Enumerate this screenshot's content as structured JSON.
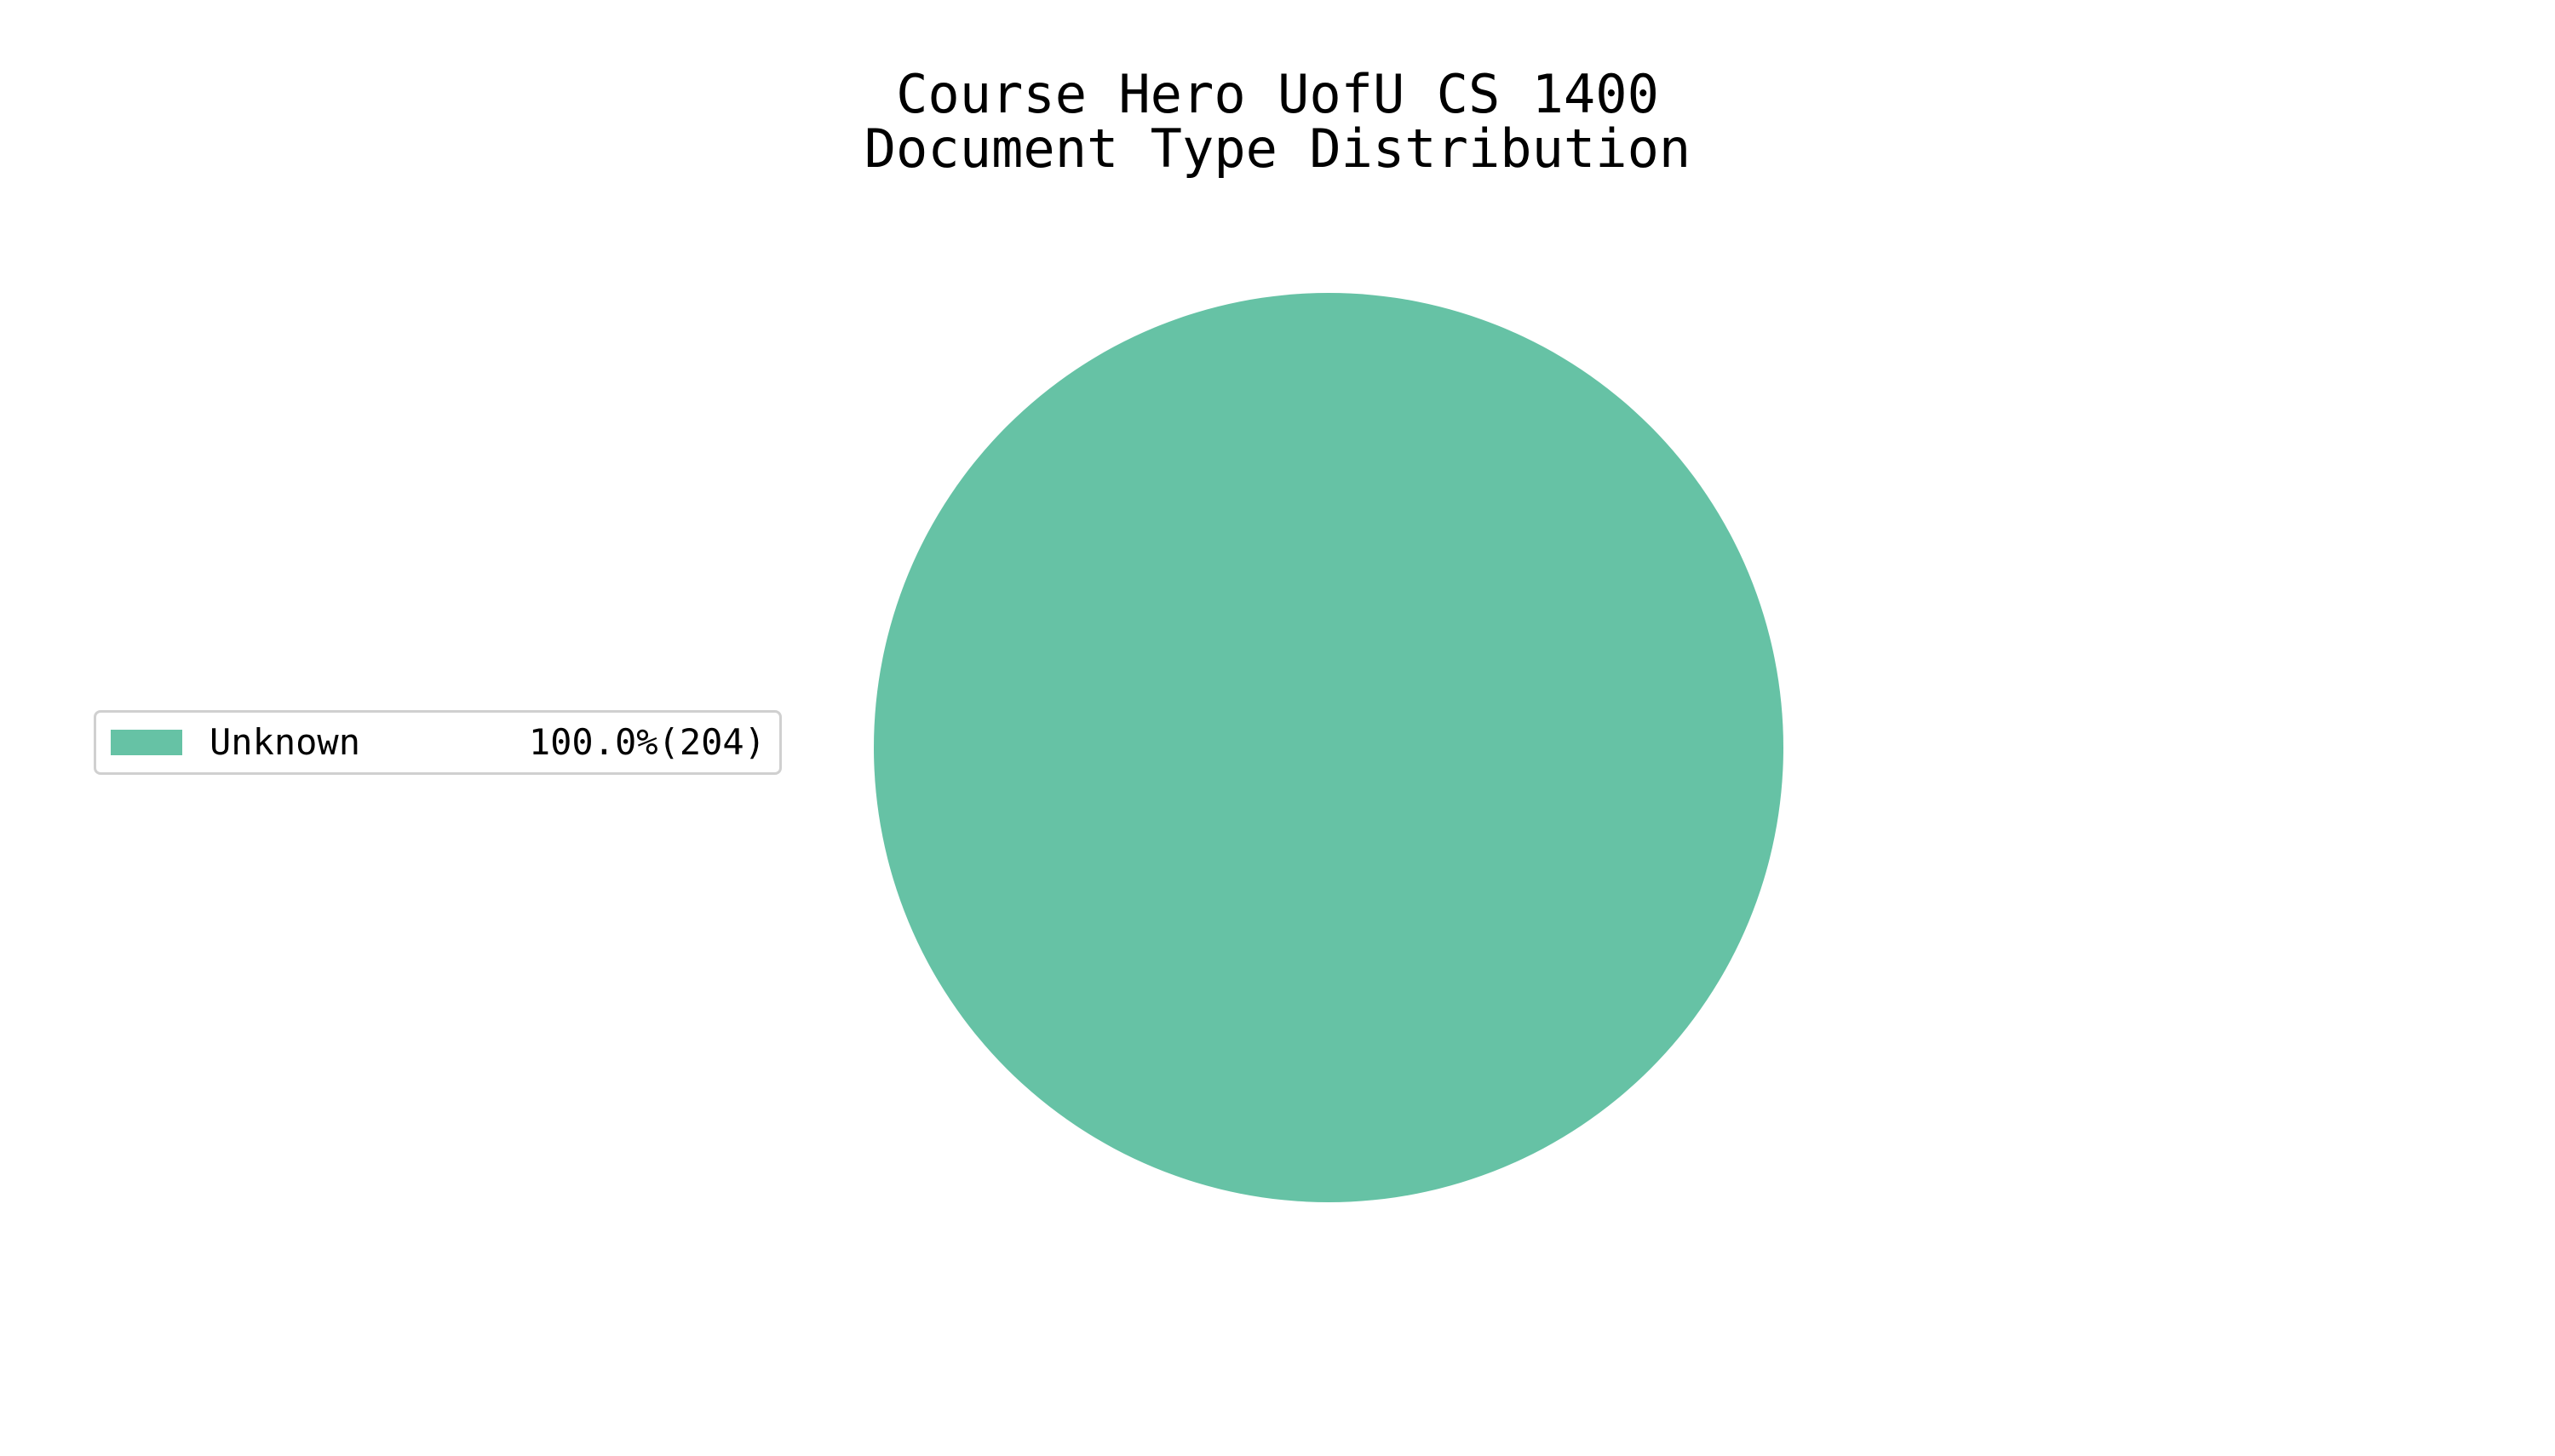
{
  "chart_data": {
    "type": "pie",
    "title": "Course Hero UofU CS 1400\nDocument Type Distribution",
    "title_lines": [
      "Course Hero UofU CS 1400",
      "Document Type Distribution"
    ],
    "slices": [
      {
        "label": "Unknown",
        "value": 204,
        "percent": 100.0,
        "display": "100.0%(204)",
        "color": "#66c2a5"
      }
    ],
    "legend": {
      "placement": "center-left",
      "entries": [
        {
          "label": "Unknown",
          "value_text": "100.0%(204)",
          "color": "#66c2a5"
        }
      ]
    }
  }
}
